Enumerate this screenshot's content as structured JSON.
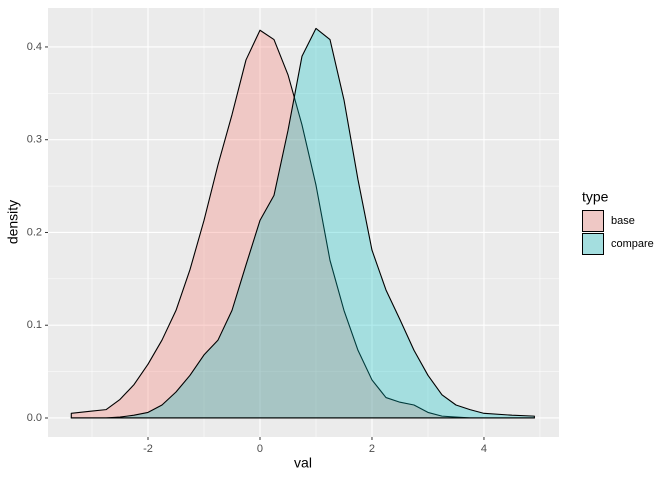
{
  "chart_data": {
    "type": "area",
    "x_label": "val",
    "y_label": "density",
    "legend_title": "type",
    "x": [
      -3.37,
      -3,
      -2.75,
      -2.5,
      -2.25,
      -2,
      -1.75,
      -1.5,
      -1.25,
      -1,
      -0.75,
      -0.5,
      -0.25,
      0,
      0.25,
      0.5,
      0.75,
      1,
      1.25,
      1.5,
      1.75,
      2,
      2.25,
      2.5,
      2.75,
      3,
      3.25,
      3.5,
      3.75,
      4,
      4.5,
      4.9
    ],
    "series": [
      {
        "name": "base",
        "color": "#F8766D",
        "values": [
          0.005,
          0.0075,
          0.009,
          0.02,
          0.036,
          0.058,
          0.084,
          0.116,
          0.16,
          0.213,
          0.273,
          0.327,
          0.386,
          0.418,
          0.408,
          0.37,
          0.316,
          0.251,
          0.17,
          0.116,
          0.073,
          0.041,
          0.022,
          0.017,
          0.014,
          0.006,
          0.002,
          0.001,
          0,
          0,
          0,
          0
        ]
      },
      {
        "name": "compare",
        "color": "#00BFC4",
        "values": [
          0,
          0,
          0,
          0.001,
          0.003,
          0.006,
          0.014,
          0.028,
          0.046,
          0.068,
          0.084,
          0.116,
          0.165,
          0.213,
          0.24,
          0.31,
          0.39,
          0.42,
          0.408,
          0.343,
          0.257,
          0.181,
          0.138,
          0.106,
          0.073,
          0.046,
          0.025,
          0.014,
          0.009,
          0.005,
          0.003,
          0.002
        ]
      }
    ],
    "xlim": [
      -3.786,
      5.34
    ],
    "xticks": [
      -2,
      0,
      2,
      4
    ],
    "ylim": [
      -0.0205,
      0.442
    ],
    "yticks": [
      {
        "value": 0,
        "label": "0.0"
      },
      0.1,
      0.2,
      0.3,
      0.4
    ],
    "grid": true,
    "legend_position": "right"
  }
}
